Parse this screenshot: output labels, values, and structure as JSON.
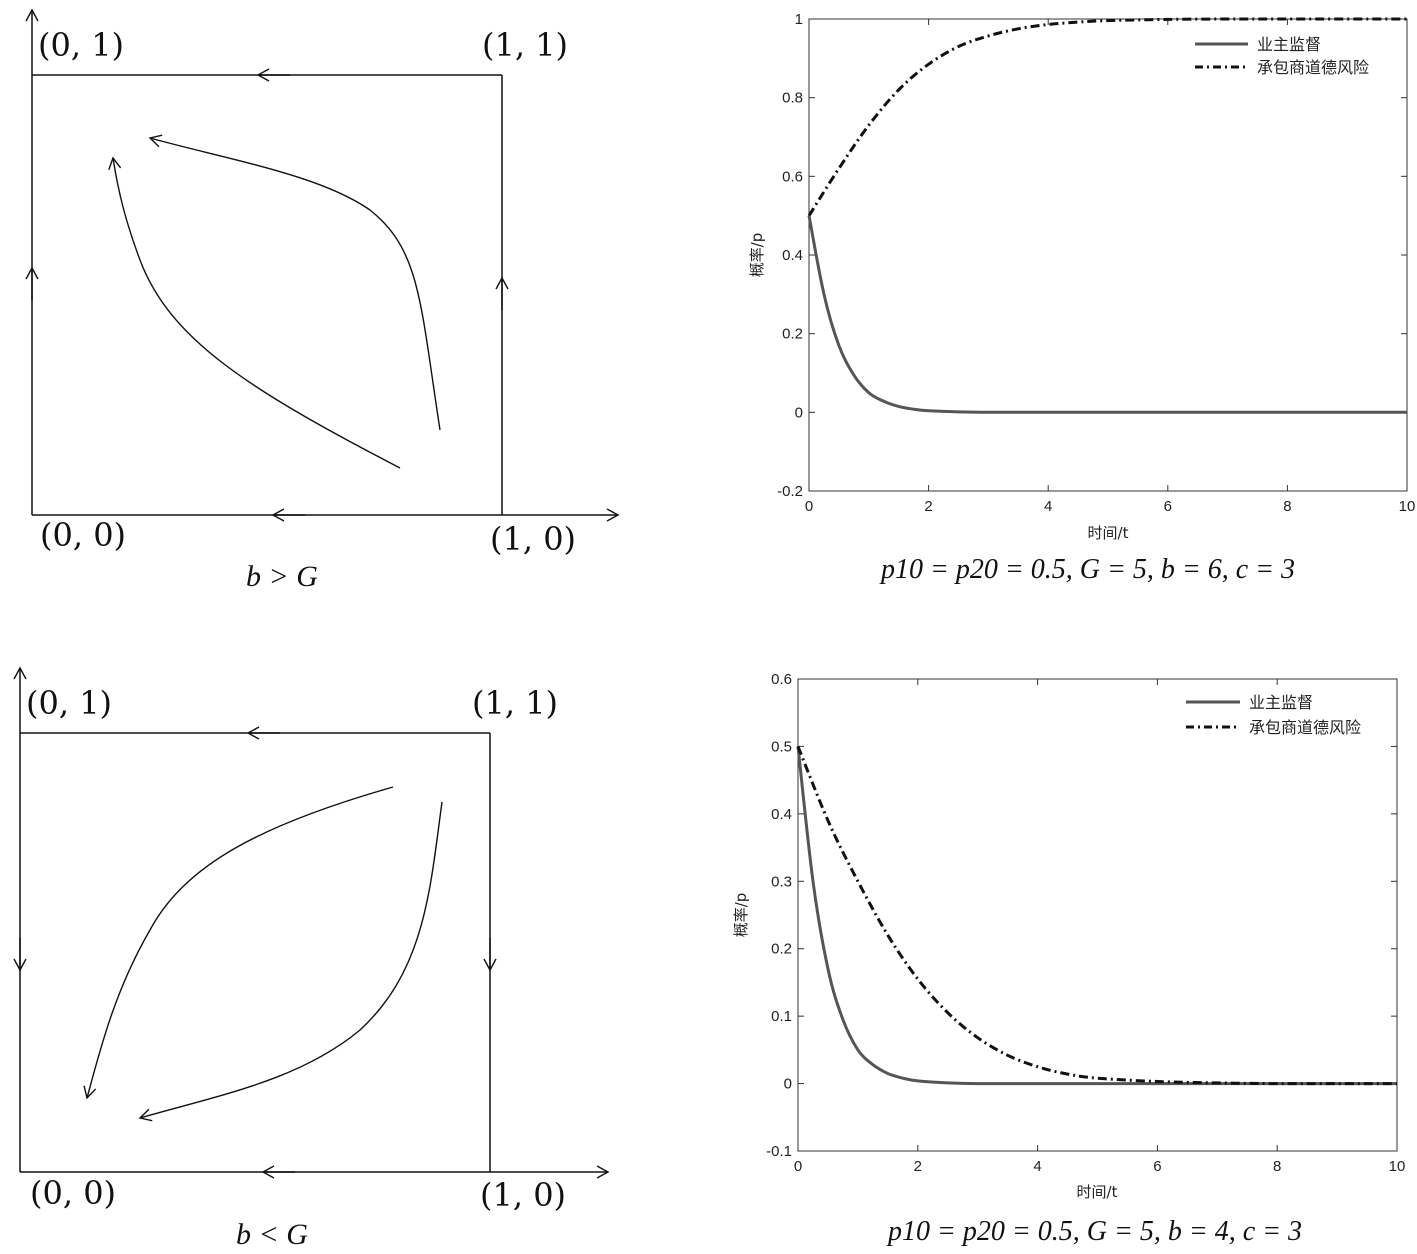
{
  "phase_diagrams": [
    {
      "labels": {
        "p01": "(0, 1)",
        "p11": "(1, 1)",
        "p00": "(0, 0)",
        "p10": "(1, 0)"
      },
      "caption": "b > G"
    },
    {
      "labels": {
        "p01": "(0, 1)",
        "p11": "(1, 1)",
        "p00": "(0, 0)",
        "p10": "(1, 0)"
      },
      "caption": "b < G"
    }
  ],
  "chart_data": [
    {
      "type": "line",
      "xlabel": "时间/t",
      "ylabel": "概率/p",
      "xlim": [
        0,
        10
      ],
      "ylim": [
        -0.2,
        1
      ],
      "xticks": [
        "0",
        "2",
        "4",
        "6",
        "8",
        "10"
      ],
      "yticks": [
        "-0.2",
        "0",
        "0.2",
        "0.4",
        "0.6",
        "0.8",
        "1"
      ],
      "legend_position": "top-right",
      "param_caption": "p10 = p20 = 0.5, G = 5, b = 6, c = 3",
      "series": [
        {
          "name": "业主监督",
          "style": "solid",
          "color": "#555555",
          "x": [
            0,
            0.25,
            0.5,
            0.75,
            1,
            1.25,
            1.5,
            1.75,
            2,
            2.5,
            3,
            4,
            6,
            8,
            10
          ],
          "y": [
            0.5,
            0.3,
            0.17,
            0.095,
            0.05,
            0.028,
            0.015,
            0.008,
            0.004,
            0.001,
            0,
            0,
            0,
            0,
            0
          ]
        },
        {
          "name": "承包商道德风险",
          "style": "dashdot",
          "color": "#111111",
          "x": [
            0,
            0.5,
            1,
            1.5,
            2,
            2.5,
            3,
            3.5,
            4,
            4.5,
            5,
            6,
            7,
            8,
            10
          ],
          "y": [
            0.5,
            0.62,
            0.73,
            0.82,
            0.885,
            0.93,
            0.957,
            0.975,
            0.986,
            0.992,
            0.996,
            0.999,
            1,
            1,
            1
          ]
        }
      ]
    },
    {
      "type": "line",
      "xlabel": "时间/t",
      "ylabel": "概率/p",
      "xlim": [
        0,
        10
      ],
      "ylim": [
        -0.1,
        0.6
      ],
      "xticks": [
        "0",
        "2",
        "4",
        "6",
        "8",
        "10"
      ],
      "yticks": [
        "-0.1",
        "0",
        "0.1",
        "0.2",
        "0.3",
        "0.4",
        "0.5",
        "0.6"
      ],
      "legend_position": "top-right",
      "param_caption": "p10 = p20 = 0.5, G = 5, b = 4, c = 3",
      "series": [
        {
          "name": "业主监督",
          "style": "solid",
          "color": "#555555",
          "x": [
            0,
            0.25,
            0.5,
            0.75,
            1,
            1.25,
            1.5,
            1.75,
            2,
            2.5,
            3,
            4,
            6,
            8,
            10
          ],
          "y": [
            0.5,
            0.3,
            0.17,
            0.095,
            0.05,
            0.028,
            0.015,
            0.008,
            0.004,
            0.001,
            0,
            0,
            0,
            0,
            0
          ]
        },
        {
          "name": "承包商道德风险",
          "style": "dashdot",
          "color": "#111111",
          "x": [
            0,
            0.5,
            1,
            1.5,
            2,
            2.5,
            3,
            3.5,
            4,
            4.5,
            5,
            6,
            7,
            8,
            10
          ],
          "y": [
            0.5,
            0.39,
            0.3,
            0.22,
            0.155,
            0.105,
            0.068,
            0.042,
            0.025,
            0.014,
            0.008,
            0.003,
            0.001,
            0,
            0
          ]
        }
      ]
    }
  ]
}
